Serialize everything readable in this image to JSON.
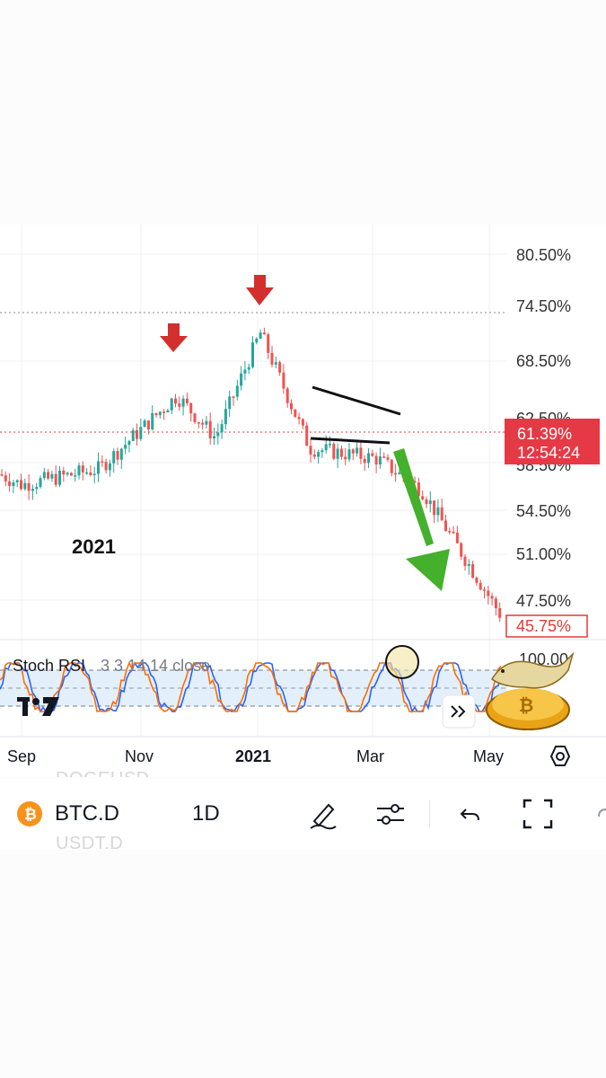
{
  "price_axis": {
    "levels": [
      "80.50%",
      "74.50%",
      "68.50%",
      "62.50%",
      "58.50%",
      "54.50%",
      "51.00%",
      "47.50%"
    ],
    "current_value": "61.39%",
    "countdown": "12:54:24",
    "low_value": "45.75%"
  },
  "time_axis": {
    "labels": [
      "Sep",
      "Nov",
      "2021",
      "Mar",
      "May"
    ]
  },
  "chart_annotation": "2021",
  "indicator": {
    "name": "Stoch RSI",
    "params": "3 3 14 14 close",
    "top_value": "100.00"
  },
  "toolbar": {
    "symbol": "BTC.D",
    "interval": "1D",
    "ghost_symbol_above": "DOGEUSD",
    "ghost_symbol_below": "USDT.D"
  },
  "chart_data": {
    "type": "candlestick",
    "title": "",
    "x_labels": [
      "Sep",
      "Nov",
      "2021",
      "Mar",
      "May"
    ],
    "ylim": [
      44,
      82
    ],
    "y_ticks": [
      80.5,
      74.5,
      68.5,
      62.5,
      58.5,
      54.5,
      51.0,
      47.5
    ],
    "closes_approx": [
      {
        "x": "Aug",
        "y": 59.5
      },
      {
        "x": "Sep",
        "y": 58.5
      },
      {
        "x": "Oct",
        "y": 60.0
      },
      {
        "x": "Nov peak",
        "y": 67.0
      },
      {
        "x": "Dec",
        "y": 63.0
      },
      {
        "x": "2021 peak",
        "y": 73.0
      },
      {
        "x": "Feb",
        "y": 62.0
      },
      {
        "x": "Mar",
        "y": 61.0
      },
      {
        "x": "Apr",
        "y": 58.0
      },
      {
        "x": "May",
        "y": 45.75
      }
    ],
    "current": 61.39,
    "resistance": 73.5,
    "support": 61.39,
    "stoch_rsi_range": [
      0,
      100
    ],
    "colors": {
      "up": "#26a69a",
      "down": "#ef5350",
      "arrow_down": "#d32f2f",
      "arrow_green": "#43b02a"
    }
  }
}
